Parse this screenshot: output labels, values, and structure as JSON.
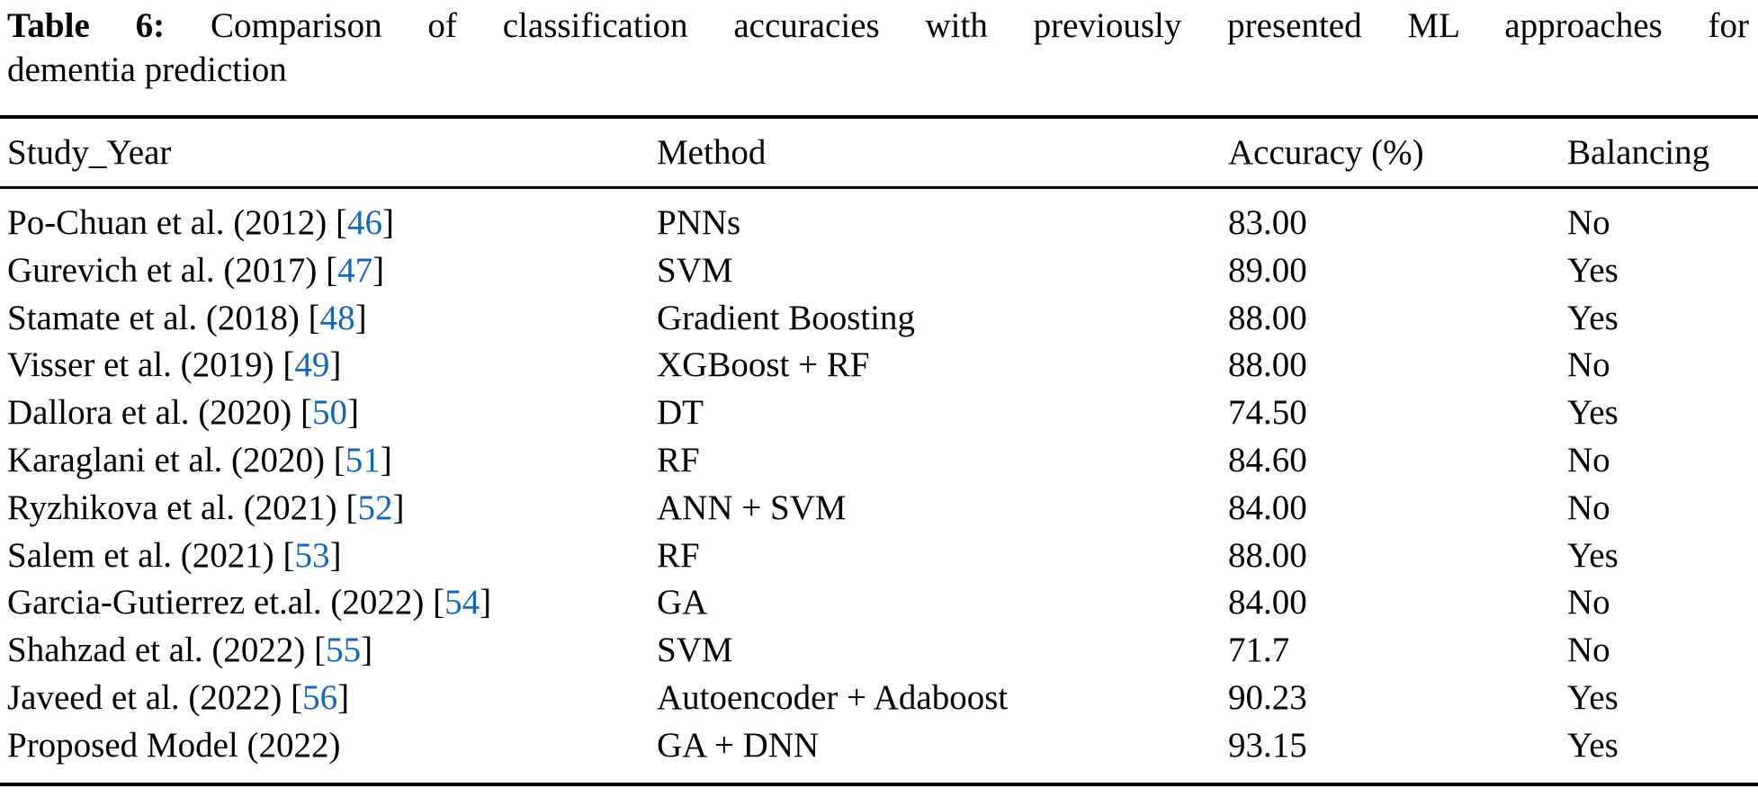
{
  "caption": {
    "label": "Table 6:",
    "line1": "Comparison of classification accuracies with previously presented ML approaches for",
    "line2": "dementia prediction"
  },
  "punctuation": {
    "cite_open": "[",
    "cite_close": "]"
  },
  "table": {
    "columns": [
      "Study_Year",
      "Method",
      "Accuracy (%)",
      "Balancing"
    ],
    "rows": [
      {
        "study": "Po-Chuan et al. (2012)",
        "ref": "46",
        "method": "PNNs",
        "accuracy": "83.00",
        "balancing": "No"
      },
      {
        "study": "Gurevich et al. (2017)",
        "ref": "47",
        "method": "SVM",
        "accuracy": "89.00",
        "balancing": "Yes"
      },
      {
        "study": "Stamate et al. (2018)",
        "ref": "48",
        "method": "Gradient Boosting",
        "accuracy": "88.00",
        "balancing": "Yes"
      },
      {
        "study": "Visser et al. (2019)",
        "ref": "49",
        "method": "XGBoost + RF",
        "accuracy": "88.00",
        "balancing": "No"
      },
      {
        "study": "Dallora et al. (2020)",
        "ref": "50",
        "method": "DT",
        "accuracy": "74.50",
        "balancing": "Yes"
      },
      {
        "study": "Karaglani et al. (2020)",
        "ref": "51",
        "method": "RF",
        "accuracy": "84.60",
        "balancing": "No"
      },
      {
        "study": "Ryzhikova et al. (2021)",
        "ref": "52",
        "method": "ANN + SVM",
        "accuracy": "84.00",
        "balancing": "No"
      },
      {
        "study": "Salem et al. (2021)",
        "ref": "53",
        "method": "RF",
        "accuracy": "88.00",
        "balancing": "Yes"
      },
      {
        "study": "Garcia-Gutierrez et.al. (2022)",
        "ref": "54",
        "method": "GA",
        "accuracy": "84.00",
        "balancing": "No"
      },
      {
        "study": "Shahzad et al. (2022)",
        "ref": "55",
        "method": "SVM",
        "accuracy": "71.7",
        "balancing": "No"
      },
      {
        "study": "Javeed et al. (2022)",
        "ref": "56",
        "method": "Autoencoder + Adaboost",
        "accuracy": "90.23",
        "balancing": "Yes"
      },
      {
        "study": "Proposed Model (2022)",
        "ref": null,
        "method": "GA + DNN",
        "accuracy": "93.15",
        "balancing": "Yes"
      }
    ]
  },
  "colors": {
    "citation_blue": "#1465bd",
    "text": "#000000",
    "background": "#ffffff"
  }
}
